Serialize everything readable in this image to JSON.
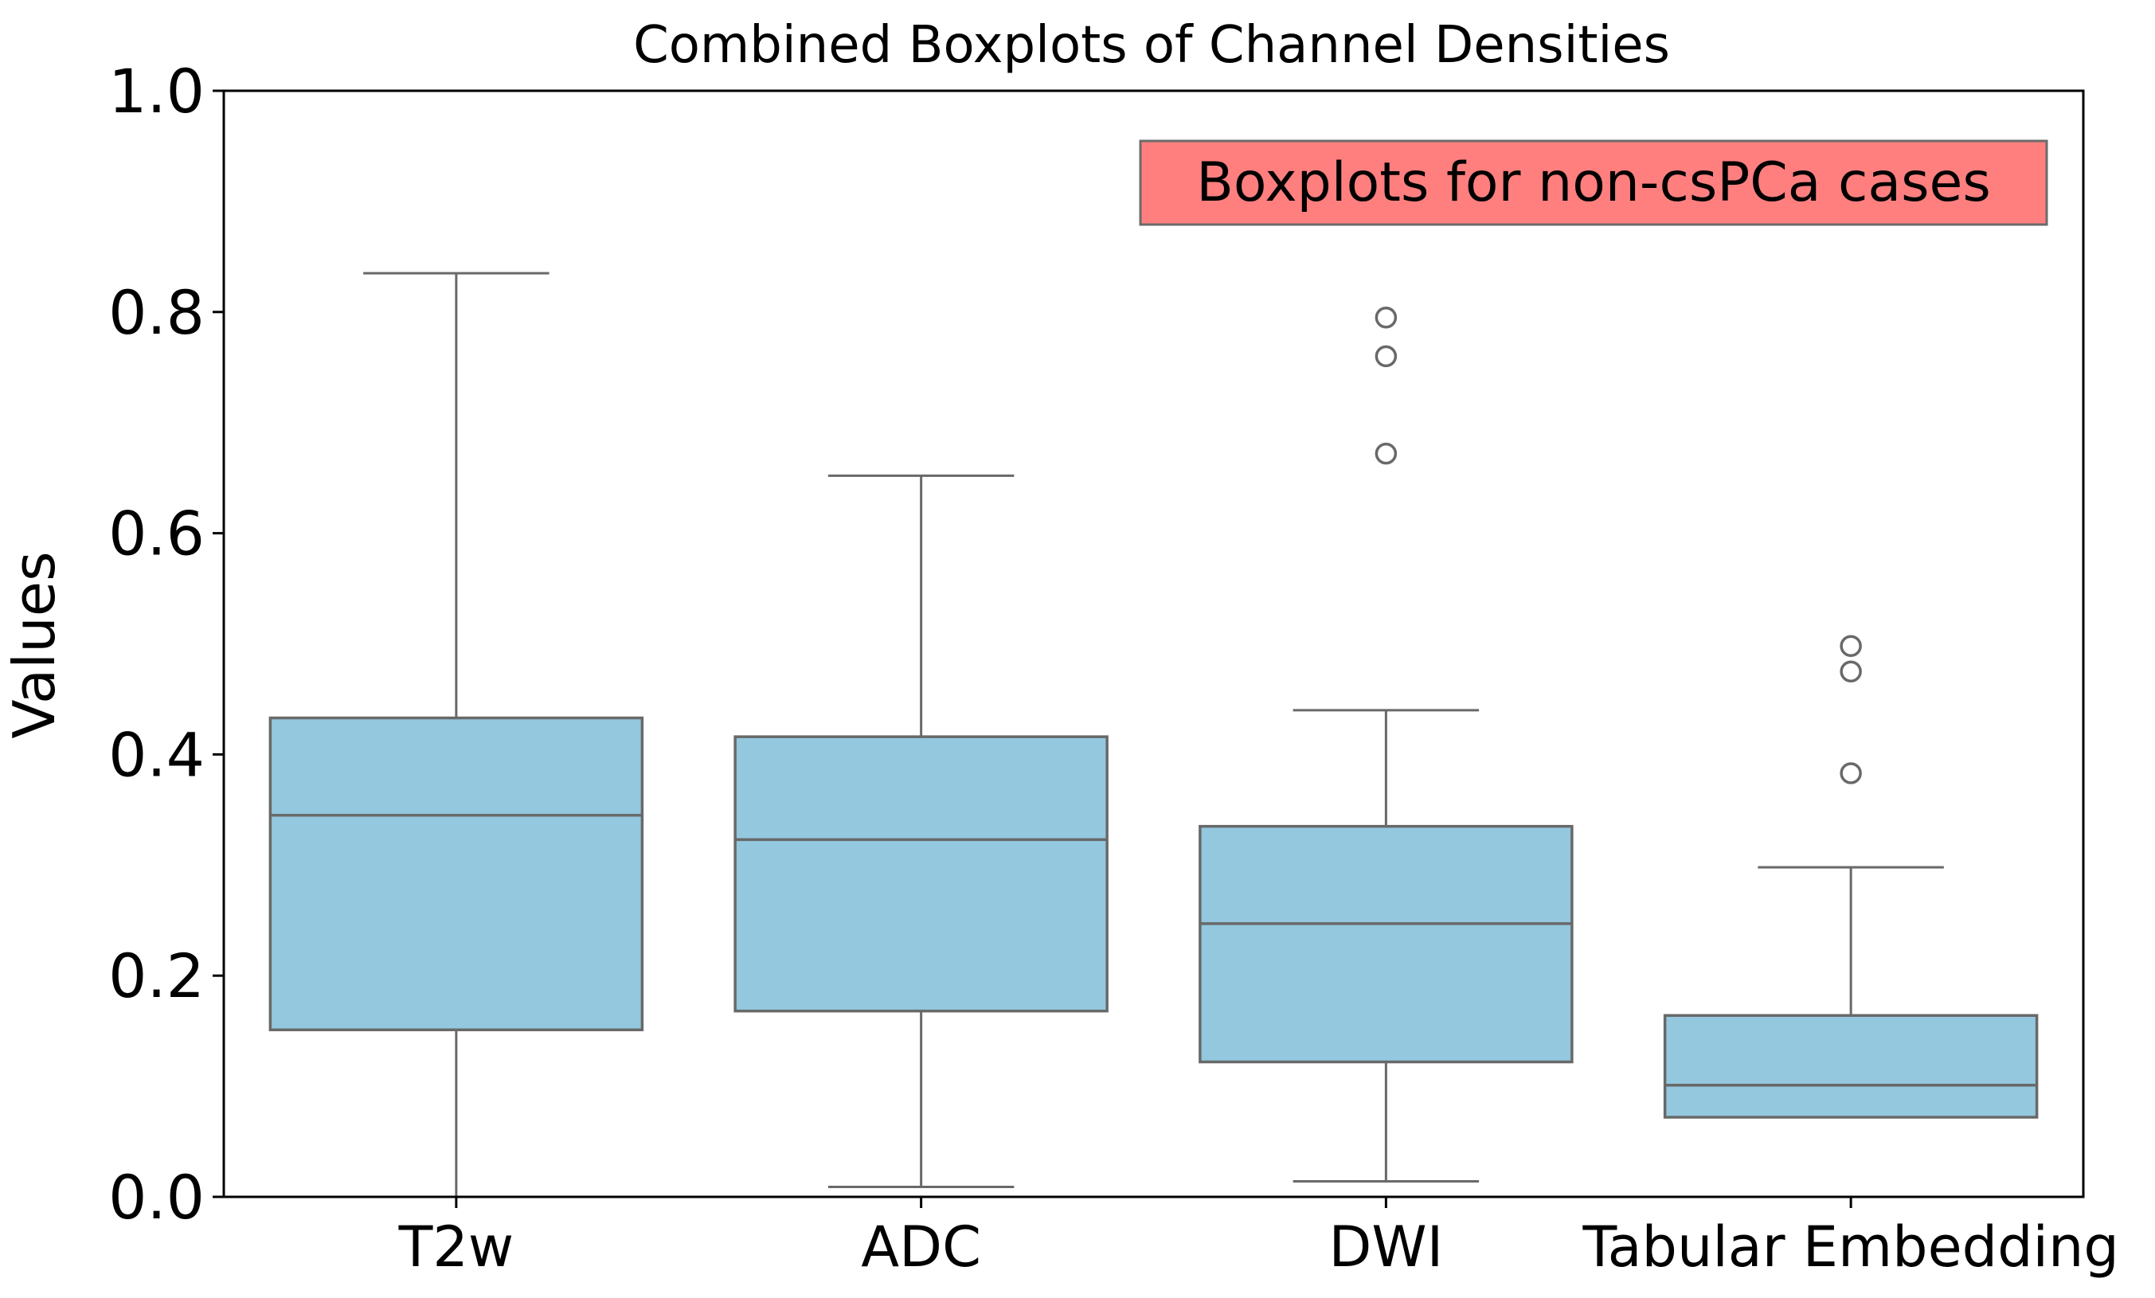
{
  "chart_data": {
    "type": "boxplot",
    "title": "Combined Boxplots of Channel Densities",
    "xlabel": "",
    "ylabel": "Values",
    "ylim": [
      0.0,
      1.0
    ],
    "yticks": [
      0.0,
      0.2,
      0.4,
      0.6,
      0.8,
      1.0
    ],
    "ytick_labels": [
      "0.0",
      "0.2",
      "0.4",
      "0.6",
      "0.8",
      "1.0"
    ],
    "grid": false,
    "categories": [
      "T2w",
      "ADC",
      "DWI",
      "Tabular Embedding"
    ],
    "boxes": [
      {
        "category": "T2w",
        "whisker_low": 0.0,
        "q1": 0.151,
        "median": 0.345,
        "q3": 0.433,
        "whisker_high": 0.835,
        "outliers": []
      },
      {
        "category": "ADC",
        "whisker_low": 0.009,
        "q1": 0.168,
        "median": 0.323,
        "q3": 0.416,
        "whisker_high": 0.652,
        "outliers": []
      },
      {
        "category": "DWI",
        "whisker_low": 0.014,
        "q1": 0.122,
        "median": 0.247,
        "q3": 0.335,
        "whisker_high": 0.44,
        "outliers": [
          0.672,
          0.76,
          0.795
        ]
      },
      {
        "category": "Tabular Embedding",
        "whisker_low": 0.072,
        "q1": 0.072,
        "median": 0.101,
        "q3": 0.164,
        "whisker_high": 0.298,
        "outliers": [
          0.383,
          0.475,
          0.498
        ]
      }
    ],
    "annotation": "Boxplots for non-csPCa cases",
    "colors": {
      "box_fill": "#93c8df",
      "box_edge": "#696969",
      "annotation_fill": "#ff7f7f",
      "annotation_edge": "#6b6b6b"
    }
  }
}
